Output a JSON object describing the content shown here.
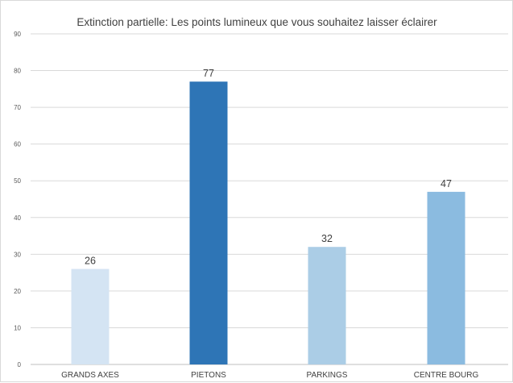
{
  "chart_data": {
    "type": "bar",
    "title": "Extinction partielle: Les points lumineux que vous souhaitez laisser éclairer",
    "xlabel": "",
    "ylabel": "",
    "categories": [
      "GRANDS AXES",
      "PIETONS",
      "PARKINGS",
      "CENTRE BOURG"
    ],
    "values": [
      26,
      77,
      32,
      47
    ],
    "data_labels": [
      "26",
      "77",
      "32",
      "47"
    ],
    "bar_colors": [
      "#d4e4f3",
      "#2e75b6",
      "#abcde6",
      "#8bbbe0"
    ],
    "ylim": [
      0,
      90
    ],
    "yticks": [
      0,
      10,
      20,
      30,
      40,
      50,
      60,
      70,
      80,
      90
    ],
    "grid": true,
    "legend": "none"
  }
}
